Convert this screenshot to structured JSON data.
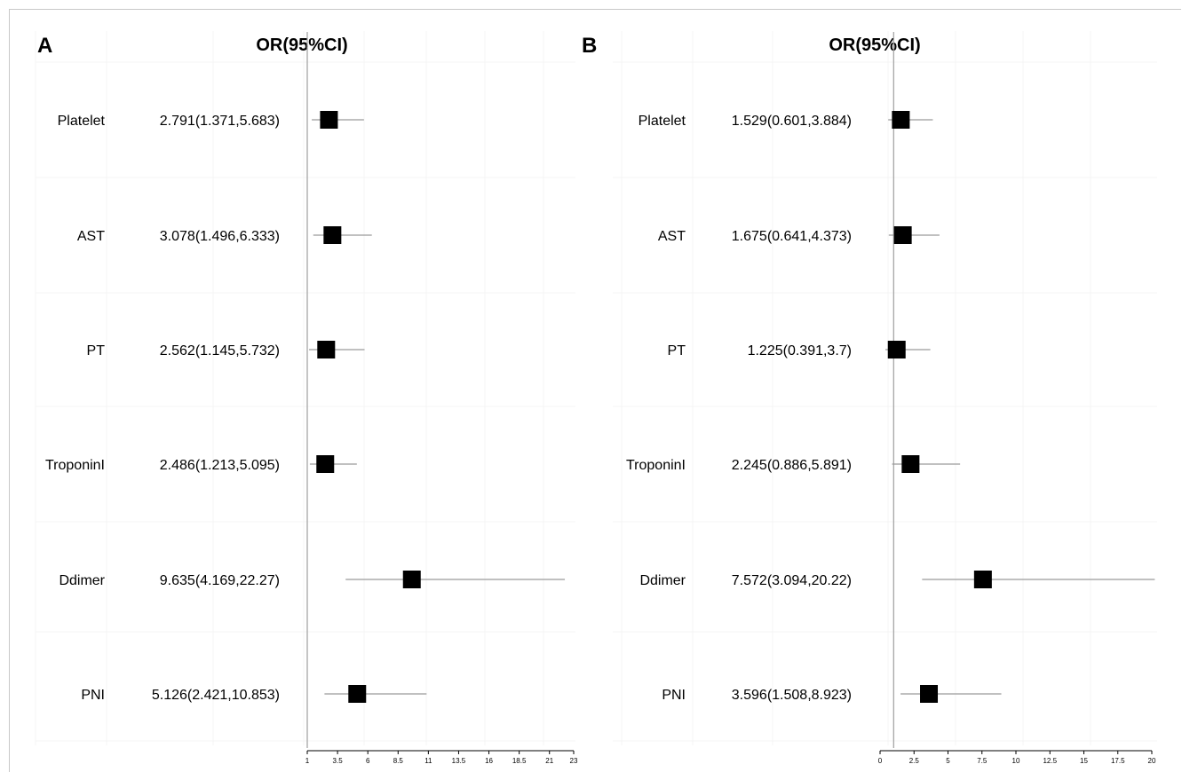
{
  "chart_data": [
    {
      "type": "forest",
      "panel_label": "A",
      "column_header": "OR(95%CI)",
      "rows": [
        {
          "label": "Platelet",
          "or_text": "2.791(1.371,5.683)",
          "or": 2.791,
          "lo": 1.371,
          "hi": 5.683
        },
        {
          "label": "AST",
          "or_text": "3.078(1.496,6.333)",
          "or": 3.078,
          "lo": 1.496,
          "hi": 6.333
        },
        {
          "label": "PT",
          "or_text": "2.562(1.145,5.732)",
          "or": 2.562,
          "lo": 1.145,
          "hi": 5.732
        },
        {
          "label": "TroponinI",
          "or_text": "2.486(1.213,5.095)",
          "or": 2.486,
          "lo": 1.213,
          "hi": 5.095
        },
        {
          "label": "Ddimer",
          "or_text": "9.635(4.169,22.27)",
          "or": 9.635,
          "lo": 4.169,
          "hi": 22.27
        },
        {
          "label": "PNI",
          "or_text": "5.126(2.421,10.853)",
          "or": 5.126,
          "lo": 2.421,
          "hi": 10.853
        }
      ],
      "xlim": [
        1,
        23
      ],
      "xticks": [
        1,
        3.5,
        6,
        8.5,
        11,
        13.5,
        16,
        18.5,
        21,
        23
      ],
      "xtick_labels": [
        "1",
        "3.5",
        "6",
        "8.5",
        "11",
        "13.5",
        "16",
        "18.5",
        "21",
        "23"
      ],
      "reference_line": 1,
      "grid": true
    },
    {
      "type": "forest",
      "panel_label": "B",
      "column_header": "OR(95%CI)",
      "rows": [
        {
          "label": "Platelet",
          "or_text": "1.529(0.601,3.884)",
          "or": 1.529,
          "lo": 0.601,
          "hi": 3.884
        },
        {
          "label": "AST",
          "or_text": "1.675(0.641,4.373)",
          "or": 1.675,
          "lo": 0.641,
          "hi": 4.373
        },
        {
          "label": "PT",
          "or_text": "1.225(0.391,3.7)",
          "or": 1.225,
          "lo": 0.391,
          "hi": 3.7
        },
        {
          "label": "TroponinI",
          "or_text": "2.245(0.886,5.891)",
          "or": 2.245,
          "lo": 0.886,
          "hi": 5.891
        },
        {
          "label": "Ddimer",
          "or_text": "7.572(3.094,20.22)",
          "or": 7.572,
          "lo": 3.094,
          "hi": 20.22
        },
        {
          "label": "PNI",
          "or_text": "3.596(1.508,8.923)",
          "or": 3.596,
          "lo": 1.508,
          "hi": 8.923
        }
      ],
      "xlim": [
        0,
        20
      ],
      "xticks": [
        0,
        2.5,
        5,
        7.5,
        10,
        12.5,
        15,
        17.5,
        20
      ],
      "xtick_labels": [
        "0",
        "2.5",
        "5",
        "7.5",
        "10",
        "12.5",
        "15",
        "17.5",
        "20"
      ],
      "reference_line": 1,
      "grid": true
    }
  ]
}
